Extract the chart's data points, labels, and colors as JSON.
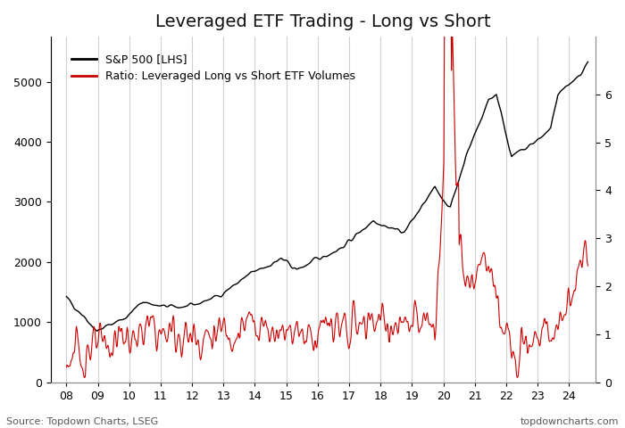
{
  "title": "Leveraged ETF Trading - Long vs Short",
  "source_left": "Source: Topdown Charts, LSEG",
  "source_right": "topdowncharts.com",
  "sp500_label": "S&P 500 [LHS]",
  "ratio_label": "Ratio: Leveraged Long vs Short ETF Volumes",
  "sp500_color": "#000000",
  "ratio_color": "#cc0000",
  "background_color": "#ffffff",
  "ylim_left": [
    0,
    5750
  ],
  "ylim_right": [
    0,
    7.2
  ],
  "yticks_left": [
    0,
    1000,
    2000,
    3000,
    4000,
    5000
  ],
  "yticks_right": [
    0,
    1,
    2,
    3,
    4,
    5,
    6
  ],
  "x_start": 2008.0,
  "x_end": 2024.6,
  "xlim": [
    2007.5,
    2024.85
  ],
  "xtick_years": [
    2008,
    2009,
    2010,
    2011,
    2012,
    2013,
    2014,
    2015,
    2016,
    2017,
    2018,
    2019,
    2020,
    2021,
    2022,
    2023,
    2024
  ],
  "xtick_labels": [
    "08",
    "09",
    "10",
    "11",
    "12",
    "13",
    "14",
    "15",
    "16",
    "17",
    "18",
    "19",
    "20",
    "21",
    "22",
    "23",
    "24"
  ],
  "grid_color": "#d0d0d0",
  "title_fontsize": 14,
  "legend_fontsize": 9,
  "tick_fontsize": 9,
  "source_fontsize": 8
}
